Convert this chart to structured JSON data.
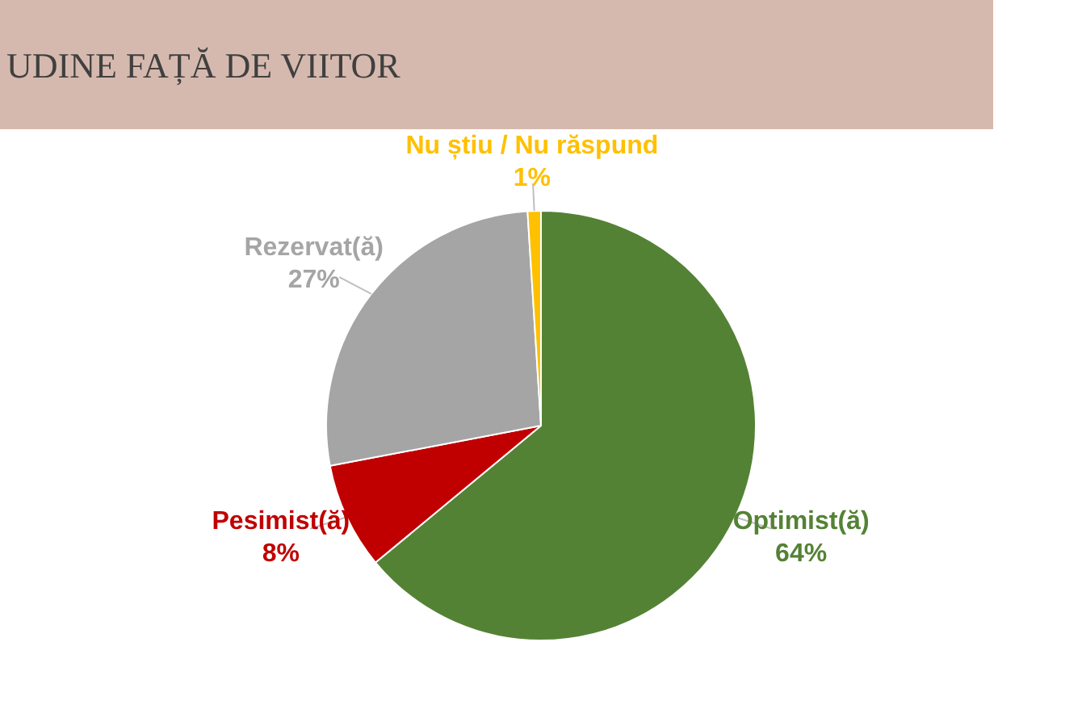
{
  "chart_data": {
    "type": "pie",
    "title": "UDINE FAȚĂ DE VIITOR",
    "categories": [
      "Optimist(ă)",
      "Pesimist(ă)",
      "Rezervat(ă)",
      "Nu știu / Nu răspund"
    ],
    "values": [
      64,
      8,
      27,
      1
    ],
    "colors": [
      "#548235",
      "#c00000",
      "#a5a5a5",
      "#ffc000"
    ],
    "value_labels": [
      "64%",
      "8%",
      "27%",
      "1%"
    ],
    "legend": false
  }
}
